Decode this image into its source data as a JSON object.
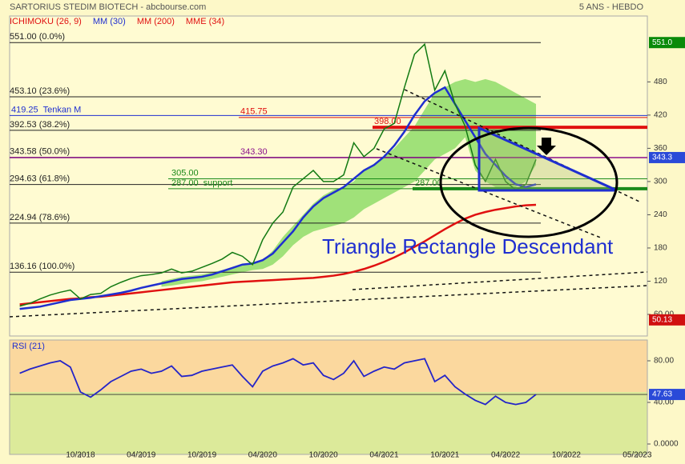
{
  "header": {
    "title": "SARTORIUS STEDIM BIOTECH - abcbourse.com",
    "period": "5 ANS - HEBDO"
  },
  "chart_data": [
    {
      "type": "line",
      "legend": [
        {
          "name": "ICHIMOKU (26, 9)",
          "color": "#e01010"
        },
        {
          "name": "MM (30)",
          "color": "#1f2fd0"
        },
        {
          "name": "MM (200)",
          "color": "#e01010"
        },
        {
          "name": "MME (34)",
          "color": "#e01010"
        }
      ],
      "x": [
        "04/2018",
        "05/2018",
        "06/2018",
        "07/2018",
        "08/2018",
        "09/2018",
        "10/2018",
        "11/2018",
        "12/2018",
        "01/2019",
        "02/2019",
        "03/2019",
        "04/2019",
        "05/2019",
        "06/2019",
        "07/2019",
        "08/2019",
        "09/2019",
        "10/2019",
        "11/2019",
        "12/2019",
        "01/2020",
        "02/2020",
        "03/2020",
        "04/2020",
        "05/2020",
        "06/2020",
        "07/2020",
        "08/2020",
        "09/2020",
        "10/2020",
        "11/2020",
        "12/2020",
        "01/2021",
        "02/2021",
        "03/2021",
        "04/2021",
        "05/2021",
        "06/2021",
        "07/2021",
        "08/2021",
        "09/2021",
        "10/2021",
        "11/2021",
        "12/2021",
        "01/2022",
        "02/2022",
        "03/2022",
        "04/2022",
        "05/2022",
        "06/2022",
        "07/2022"
      ],
      "price": {
        "color": "#127a12",
        "values": [
          75,
          80,
          88,
          95,
          100,
          104,
          88,
          96,
          98,
          110,
          118,
          125,
          130,
          132,
          135,
          142,
          135,
          138,
          145,
          152,
          160,
          172,
          165,
          150,
          195,
          225,
          245,
          290,
          305,
          320,
          300,
          300,
          312,
          370,
          345,
          360,
          395,
          405,
          470,
          530,
          548,
          465,
          500,
          440,
          400,
          330,
          300,
          340,
          300,
          285,
          295,
          340
        ]
      },
      "cloud": {
        "color": "#8fdc6a",
        "low": [
          null,
          null,
          null,
          null,
          null,
          null,
          null,
          null,
          null,
          null,
          null,
          null,
          null,
          null,
          110,
          112,
          115,
          118,
          120,
          124,
          128,
          132,
          136,
          140,
          142,
          150,
          165,
          185,
          200,
          210,
          215,
          220,
          225,
          235,
          250,
          260,
          270,
          280,
          290,
          300,
          320,
          340,
          350,
          360,
          380,
          320,
          300,
          290,
          285,
          290,
          300,
          330
        ],
        "high": [
          null,
          null,
          null,
          null,
          null,
          null,
          null,
          null,
          null,
          null,
          null,
          null,
          null,
          null,
          120,
          124,
          128,
          130,
          132,
          136,
          140,
          145,
          150,
          152,
          158,
          175,
          200,
          220,
          240,
          260,
          275,
          285,
          290,
          300,
          320,
          330,
          345,
          360,
          380,
          400,
          430,
          460,
          470,
          480,
          485,
          480,
          485,
          480,
          470,
          460,
          450,
          440
        ]
      },
      "mm30": {
        "color": "#1f2fd0",
        "values": [
          70,
          72,
          74,
          78,
          82,
          86,
          88,
          90,
          93,
          96,
          99,
          103,
          108,
          112,
          116,
          120,
          124,
          126,
          128,
          132,
          138,
          144,
          150,
          152,
          158,
          170,
          190,
          210,
          235,
          255,
          270,
          280,
          290,
          305,
          320,
          330,
          345,
          365,
          390,
          420,
          445,
          460,
          470,
          440,
          410,
          380,
          350,
          330,
          310,
          295,
          290,
          295
        ]
      },
      "mm200": {
        "color": "#e01010",
        "values": [
          78,
          80,
          82,
          84,
          86,
          88,
          89,
          91,
          92,
          94,
          96,
          98,
          100,
          102,
          104,
          106,
          108,
          110,
          112,
          114,
          116,
          118,
          119,
          120,
          121,
          122,
          123,
          124,
          125,
          126,
          128,
          130,
          133,
          137,
          142,
          148,
          155,
          163,
          172,
          182,
          192,
          203,
          214,
          224,
          233,
          240,
          245,
          249,
          252,
          255,
          257,
          258
        ]
      },
      "levels": [
        {
          "value": 551,
          "label": "551.00 (0.0%)"
        },
        {
          "value": 453.1,
          "label": "453.10 (23.6%)"
        },
        {
          "value": 392.53,
          "label": "392.53 (38.2%)"
        },
        {
          "value": 343.58,
          "label": "343.58 (50.0%)"
        },
        {
          "value": 294.63,
          "label": "294.63 (61.8%)"
        },
        {
          "value": 224.94,
          "label": "224.94 (78.6%)"
        },
        {
          "value": 136.16,
          "label": "136.16 (100.0%)"
        }
      ],
      "lines": [
        {
          "value": 419.25,
          "label": "419.25",
          "name": "Tenkan M",
          "color": "#1f2fd0"
        },
        {
          "value": 415.75,
          "label": "415.75",
          "color": "#e01010"
        },
        {
          "value": 398,
          "label": "398.00",
          "color": "#e01010"
        },
        {
          "value": 343.3,
          "label": "343.30",
          "color": "#8b108b"
        },
        {
          "value": 305,
          "label": "305.00",
          "color": "#1a8a1a"
        },
        {
          "value": 287,
          "label": "287.00",
          "name": "support",
          "color": "#1a8a1a"
        },
        {
          "value": 287,
          "label": "287.00",
          "color": "#1a8a1a"
        }
      ],
      "annotation": "Triangle Rectangle Descendant",
      "last_values": [
        {
          "value": 551,
          "label": "551.0",
          "color": "#0a8a0a"
        },
        {
          "value": 343.3,
          "color": "#2a4ad8"
        },
        {
          "value": 50.13,
          "color": "#d01010"
        }
      ],
      "xlim": [
        "03/2018",
        "06/2023"
      ],
      "xticks": [
        "10/2018",
        "04/2019",
        "10/2019",
        "04/2020",
        "10/2020",
        "04/2021",
        "10/2021",
        "04/2022",
        "10/2022",
        "05/2023"
      ],
      "ylim": [
        21,
        599
      ],
      "yticks": [
        {
          "value": 60,
          "label": "60.00"
        },
        120,
        180,
        240,
        300,
        360,
        420,
        480
      ]
    },
    {
      "type": "line",
      "title": "RSI (21)",
      "color": "#2424c8",
      "values": [
        68,
        72,
        75,
        78,
        80,
        74,
        50,
        45,
        52,
        60,
        65,
        70,
        72,
        68,
        70,
        75,
        65,
        66,
        70,
        72,
        74,
        76,
        65,
        55,
        70,
        75,
        78,
        82,
        76,
        78,
        66,
        62,
        68,
        80,
        65,
        70,
        74,
        72,
        78,
        80,
        82,
        60,
        66,
        55,
        48,
        42,
        38,
        46,
        40,
        38,
        40,
        47.63
      ],
      "last_value": {
        "value": 47.63,
        "color": "#2a4ad8"
      },
      "ylim": [
        -10,
        100
      ],
      "yticks": [
        {
          "value": 0,
          "label": "0.0000"
        },
        {
          "value": 40,
          "label": "40.00"
        },
        {
          "value": 80,
          "label": "80.00"
        }
      ]
    }
  ]
}
